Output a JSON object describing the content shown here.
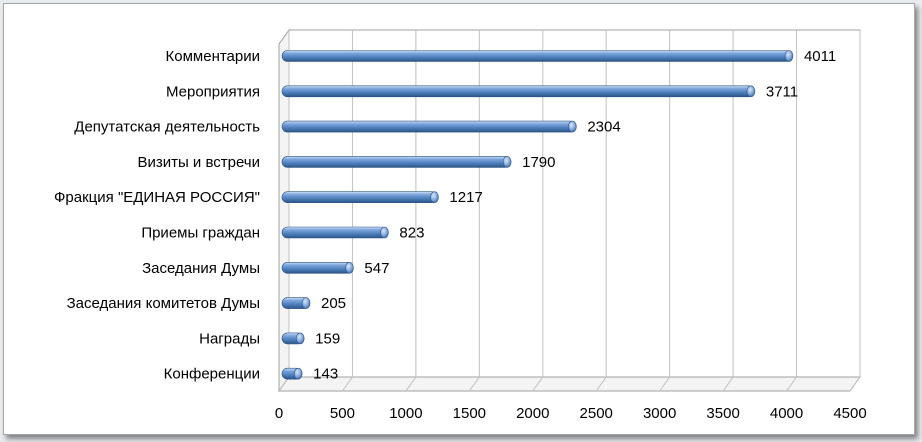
{
  "chart_data": {
    "type": "bar",
    "orientation": "horizontal",
    "style": "3d-cylinder",
    "title": "",
    "xlabel": "",
    "ylabel": "",
    "categories": [
      "Комментарии",
      "Мероприятия",
      "Депутатская деятельность",
      "Визиты и встречи",
      "Фракция \"ЕДИНАЯ РОССИЯ\"",
      "Приемы граждан",
      "Заседания Думы",
      "Заседания комитетов Думы",
      "Награды",
      "Конференции"
    ],
    "values": [
      4011,
      3711,
      2304,
      1790,
      1217,
      823,
      547,
      205,
      159,
      143
    ],
    "xlim": [
      0,
      4500
    ],
    "x_ticks": [
      0,
      500,
      1000,
      1500,
      2000,
      2500,
      3000,
      3500,
      4000,
      4500
    ],
    "grid": "vertical",
    "legend": "none",
    "data_labels": true,
    "colors": {
      "bar": "#4f81bd",
      "bar_dark": "#2c5488",
      "bar_light": "#a9c4e8",
      "grid": "#c0c0c0",
      "axis": "#a0a0a0"
    }
  }
}
